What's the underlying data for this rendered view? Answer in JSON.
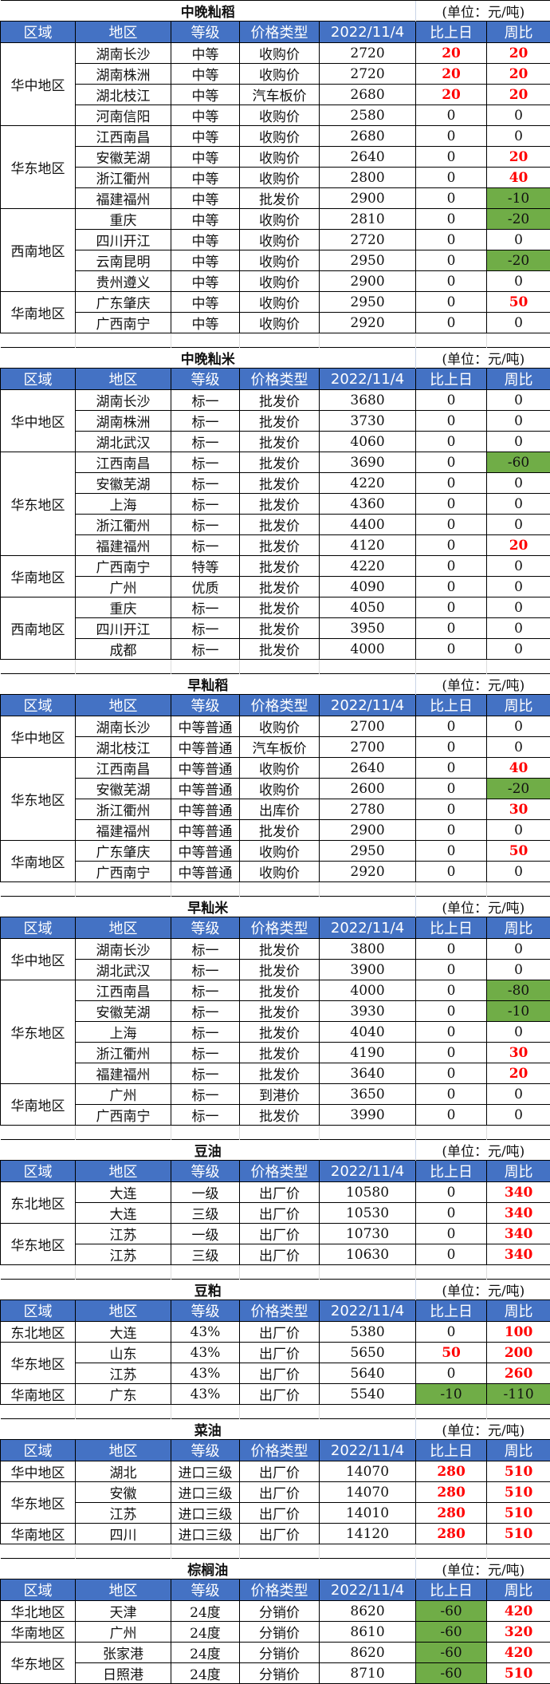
{
  "unit_label": "(单位：元/吨)",
  "columns": [
    "区域",
    "地区",
    "等级",
    "价格类型",
    "2022/11/4",
    "比上日",
    "周比"
  ],
  "colors": {
    "header_bg": "#4472C4",
    "up": "#ff0000",
    "down_bg": "#70AD47"
  },
  "tables": [
    {
      "title": "中晚籼稻",
      "groups": [
        {
          "region": "华中地区",
          "rows": [
            [
              "湖南长沙",
              "中等",
              "收购价",
              "2720",
              "20",
              "20"
            ],
            [
              "湖南株洲",
              "中等",
              "收购价",
              "2720",
              "20",
              "20"
            ],
            [
              "湖北枝江",
              "中等",
              "汽车板价",
              "2680",
              "20",
              "20"
            ],
            [
              "河南信阳",
              "中等",
              "收购价",
              "2580",
              "0",
              "0"
            ]
          ]
        },
        {
          "region": "华东地区",
          "rows": [
            [
              "江西南昌",
              "中等",
              "收购价",
              "2680",
              "0",
              "0"
            ],
            [
              "安徽芜湖",
              "中等",
              "收购价",
              "2640",
              "0",
              "20"
            ],
            [
              "浙江衢州",
              "中等",
              "收购价",
              "2800",
              "0",
              "40"
            ],
            [
              "福建福州",
              "中等",
              "批发价",
              "2900",
              "0",
              "-10"
            ]
          ]
        },
        {
          "region": "西南地区",
          "rows": [
            [
              "重庆",
              "中等",
              "收购价",
              "2810",
              "0",
              "-20"
            ],
            [
              "四川开江",
              "中等",
              "收购价",
              "2720",
              "0",
              "0"
            ],
            [
              "云南昆明",
              "中等",
              "收购价",
              "2950",
              "0",
              "-20"
            ],
            [
              "贵州遵义",
              "中等",
              "收购价",
              "2900",
              "0",
              "0"
            ]
          ]
        },
        {
          "region": "华南地区",
          "rows": [
            [
              "广东肇庆",
              "中等",
              "收购价",
              "2950",
              "0",
              "50"
            ],
            [
              "广西南宁",
              "中等",
              "收购价",
              "2920",
              "0",
              "0"
            ]
          ]
        }
      ]
    },
    {
      "title": "中晚籼米",
      "groups": [
        {
          "region": "华中地区",
          "rows": [
            [
              "湖南长沙",
              "标一",
              "批发价",
              "3680",
              "0",
              "0"
            ],
            [
              "湖南株洲",
              "标一",
              "批发价",
              "3730",
              "0",
              "0"
            ],
            [
              "湖北武汉",
              "标一",
              "批发价",
              "4060",
              "0",
              "0"
            ]
          ]
        },
        {
          "region": "华东地区",
          "rows": [
            [
              "江西南昌",
              "标一",
              "批发价",
              "3690",
              "0",
              "-60"
            ],
            [
              "安徽芜湖",
              "标一",
              "批发价",
              "4220",
              "0",
              "0"
            ],
            [
              "上海",
              "标一",
              "批发价",
              "4360",
              "0",
              "0"
            ],
            [
              "浙江衢州",
              "标一",
              "批发价",
              "4400",
              "0",
              "0"
            ],
            [
              "福建福州",
              "标一",
              "批发价",
              "4120",
              "0",
              "20"
            ]
          ]
        },
        {
          "region": "华南地区",
          "rows": [
            [
              "广西南宁",
              "特等",
              "批发价",
              "4220",
              "0",
              "0"
            ],
            [
              "广州",
              "优质",
              "批发价",
              "4090",
              "0",
              "0"
            ]
          ]
        },
        {
          "region": "西南地区",
          "rows": [
            [
              "重庆",
              "标一",
              "批发价",
              "4050",
              "0",
              "0"
            ],
            [
              "四川开江",
              "标一",
              "批发价",
              "3950",
              "0",
              "0"
            ],
            [
              "成都",
              "标一",
              "批发价",
              "4000",
              "0",
              "0"
            ]
          ]
        }
      ]
    },
    {
      "title": "早籼稻",
      "groups": [
        {
          "region": "华中地区",
          "rows": [
            [
              "湖南长沙",
              "中等普通",
              "收购价",
              "2700",
              "0",
              "0"
            ],
            [
              "湖北枝江",
              "中等普通",
              "汽车板价",
              "2700",
              "0",
              "0"
            ]
          ]
        },
        {
          "region": "华东地区",
          "rows": [
            [
              "江西南昌",
              "中等普通",
              "收购价",
              "2640",
              "0",
              "40"
            ],
            [
              "安徽芜湖",
              "中等普通",
              "收购价",
              "2600",
              "0",
              "-20"
            ],
            [
              "浙江衢州",
              "中等普通",
              "出库价",
              "2780",
              "0",
              "30"
            ],
            [
              "福建福州",
              "中等普通",
              "批发价",
              "2900",
              "0",
              "0"
            ]
          ]
        },
        {
          "region": "华南地区",
          "rows": [
            [
              "广东肇庆",
              "中等普通",
              "收购价",
              "2950",
              "0",
              "50"
            ],
            [
              "广西南宁",
              "中等普通",
              "收购价",
              "2920",
              "0",
              "0"
            ]
          ]
        }
      ]
    },
    {
      "title": "早籼米",
      "groups": [
        {
          "region": "华中地区",
          "rows": [
            [
              "湖南长沙",
              "标一",
              "批发价",
              "3800",
              "0",
              "0"
            ],
            [
              "湖北武汉",
              "标一",
              "批发价",
              "3900",
              "0",
              "0"
            ]
          ]
        },
        {
          "region": "华东地区",
          "rows": [
            [
              "江西南昌",
              "标一",
              "批发价",
              "4000",
              "0",
              "-80"
            ],
            [
              "安徽芜湖",
              "标一",
              "批发价",
              "3930",
              "0",
              "-10"
            ],
            [
              "上海",
              "标一",
              "批发价",
              "4040",
              "0",
              "0"
            ],
            [
              "浙江衢州",
              "标一",
              "批发价",
              "4190",
              "0",
              "30"
            ],
            [
              "福建福州",
              "标一",
              "批发价",
              "3640",
              "0",
              "20"
            ]
          ]
        },
        {
          "region": "华南地区",
          "rows": [
            [
              "广州",
              "标一",
              "到港价",
              "3650",
              "0",
              "0"
            ],
            [
              "广西南宁",
              "标一",
              "批发价",
              "3990",
              "0",
              "0"
            ]
          ]
        }
      ]
    },
    {
      "title": "豆油",
      "groups": [
        {
          "region": "东北地区",
          "rows": [
            [
              "大连",
              "一级",
              "出厂价",
              "10580",
              "0",
              "340"
            ],
            [
              "大连",
              "三级",
              "出厂价",
              "10530",
              "0",
              "340"
            ]
          ]
        },
        {
          "region": "华东地区",
          "rows": [
            [
              "江苏",
              "一级",
              "出厂价",
              "10730",
              "0",
              "340"
            ],
            [
              "江苏",
              "三级",
              "出厂价",
              "10630",
              "0",
              "340"
            ]
          ]
        }
      ]
    },
    {
      "title": "豆粕",
      "groups": [
        {
          "region": "东北地区",
          "rows": [
            [
              "大连",
              "43%",
              "出厂价",
              "5380",
              "0",
              "100"
            ]
          ]
        },
        {
          "region": "华东地区",
          "rows": [
            [
              "山东",
              "43%",
              "出厂价",
              "5650",
              "50",
              "200"
            ],
            [
              "江苏",
              "43%",
              "出厂价",
              "5640",
              "0",
              "260"
            ]
          ]
        },
        {
          "region": "华南地区",
          "rows": [
            [
              "广东",
              "43%",
              "出厂价",
              "5540",
              "-10",
              "-110"
            ]
          ]
        }
      ]
    },
    {
      "title": "菜油",
      "groups": [
        {
          "region": "华中地区",
          "rows": [
            [
              "湖北",
              "进口三级",
              "出厂价",
              "14070",
              "280",
              "510"
            ]
          ]
        },
        {
          "region": "华东地区",
          "rows": [
            [
              "安徽",
              "进口三级",
              "出厂价",
              "14070",
              "280",
              "510"
            ],
            [
              "江苏",
              "进口三级",
              "出厂价",
              "14010",
              "280",
              "510"
            ]
          ]
        },
        {
          "region": "华南地区",
          "rows": [
            [
              "四川",
              "进口三级",
              "出厂价",
              "14120",
              "280",
              "510"
            ]
          ]
        }
      ]
    },
    {
      "title": "棕榈油",
      "groups": [
        {
          "region": "华北地区",
          "rows": [
            [
              "天津",
              "24度",
              "分销价",
              "8620",
              "-60",
              "420"
            ]
          ]
        },
        {
          "region": "华南地区",
          "rows": [
            [
              "广州",
              "24度",
              "分销价",
              "8610",
              "-60",
              "320"
            ]
          ]
        },
        {
          "region": "华东地区",
          "rows": [
            [
              "张家港",
              "24度",
              "分销价",
              "8620",
              "-60",
              "420"
            ],
            [
              "日照港",
              "24度",
              "分销价",
              "8710",
              "-60",
              "510"
            ]
          ]
        }
      ]
    }
  ]
}
